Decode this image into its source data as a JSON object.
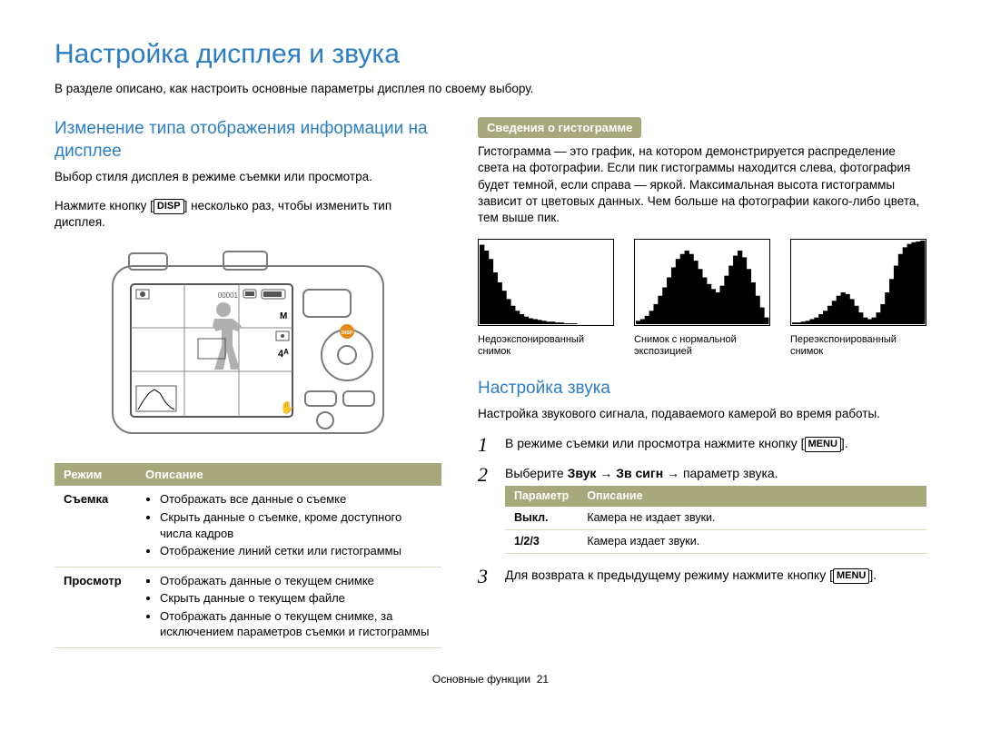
{
  "page": {
    "title": "Настройка дисплея и звука",
    "intro": "В разделе описано, как настроить основные параметры дисплея по своему выбору.",
    "footer_section": "Основные функции",
    "footer_page": "21"
  },
  "left": {
    "heading": "Изменение типа отображения информации на дисплее",
    "desc": "Выбор стиля дисплея в режиме съемки или просмотра.",
    "step_a": "Нажмите кнопку ",
    "disp": "DISP",
    "step_b": " несколько раз, чтобы изменить тип дисплея.",
    "camera": {
      "body_stroke": "#7a7a7a",
      "body_stroke_w": 2,
      "screen_stroke": "#555555",
      "grid_stroke": "#888888",
      "silhouette_fill": "#b0b0b0",
      "disp_btn_fill": "#e58a1a"
    },
    "table": {
      "head_mode": "Режим",
      "head_desc": "Описание",
      "rows": [
        {
          "mode": "Съемка",
          "items": [
            "Отображать все данные о съемке",
            "Скрыть данные о съемке, кроме доступного числа кадров",
            "Отображение линий сетки или гистограммы"
          ]
        },
        {
          "mode": "Просмотр",
          "items": [
            "Отображать данные о текущем снимке",
            "Скрыть данные о текущем файле",
            "Отображать данные о текущем снимке, за исключением параметров съемки и гистограммы"
          ]
        }
      ]
    }
  },
  "right": {
    "box_title": "Сведения о гистограмме",
    "hist_text": "Гистограмма — это график, на котором демонстрируется распределение света на фотографии. Если пик гистограммы находится слева, фотография будет темной, если справа — яркой. Максимальная высота гистограммы зависит от цветовых данных. Чем больше на фотографии какого-либо цвета, тем выше пик.",
    "histograms": [
      {
        "caption": "Недоэкспонированный снимок",
        "bars": [
          95,
          88,
          78,
          62,
          50,
          40,
          30,
          22,
          16,
          12,
          9,
          7,
          6,
          5,
          4,
          3,
          3,
          2,
          2,
          1,
          1,
          1,
          0,
          0,
          0,
          0,
          0,
          0,
          0,
          0
        ],
        "spike_index": null
      },
      {
        "caption": "Снимок с нормальной экспозицией",
        "bars": [
          4,
          6,
          10,
          16,
          24,
          34,
          44,
          56,
          68,
          78,
          84,
          88,
          84,
          76,
          66,
          56,
          48,
          42,
          38,
          46,
          58,
          70,
          82,
          88,
          80,
          66,
          50,
          34,
          20,
          8
        ],
        "spike_index": null
      },
      {
        "caption": "Переэкспонированный снимок",
        "bars": [
          2,
          2,
          3,
          4,
          6,
          8,
          12,
          16,
          22,
          28,
          34,
          38,
          36,
          30,
          22,
          14,
          8,
          6,
          8,
          14,
          24,
          38,
          54,
          70,
          84,
          92,
          96,
          98,
          99,
          100
        ],
        "spike_index": 29
      }
    ],
    "hist_style": {
      "fill": "#000000",
      "border": "#000000",
      "bg": "#ffffff",
      "width": 150,
      "height": 96
    },
    "sound_heading": "Настройка звука",
    "sound_desc": "Настройка звукового сигнала, подаваемого камерой во время работы.",
    "steps": {
      "s1a": "В режиме съемки или просмотра нажмите кнопку ",
      "s1b": ".",
      "menu": "MENU",
      "s2a": "Выберите ",
      "s2_path1": "Звук",
      "s2_path2": "Зв сигн",
      "s2_path3": "параметр звука",
      "s2b": ".",
      "s3a": "Для возврата к предыдущему режиму нажмите кнопку ",
      "s3b": "."
    },
    "param_table": {
      "head_p": "Параметр",
      "head_d": "Описание",
      "rows": [
        {
          "p": "Выкл.",
          "d": "Камера не издает звуки."
        },
        {
          "p": "1/2/3",
          "d": "Камера издает звуки."
        }
      ]
    }
  }
}
